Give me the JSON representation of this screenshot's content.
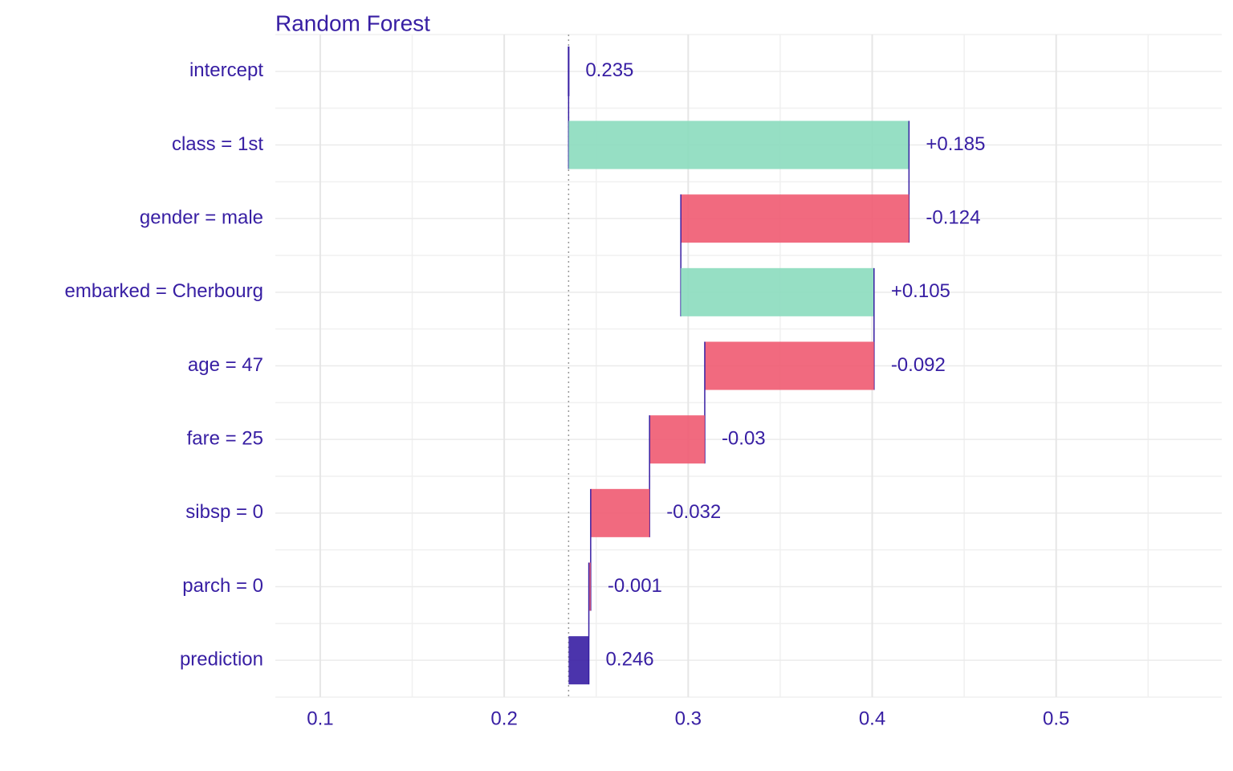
{
  "chart_data": {
    "type": "waterfall",
    "title": "Random Forest",
    "categories": [
      "intercept",
      "class = 1st",
      "gender = male",
      "embarked = Cherbourg",
      "age = 47",
      "fare = 25",
      "sibsp = 0",
      "parch = 0",
      "prediction"
    ],
    "values": [
      0.235,
      0.185,
      -0.124,
      0.105,
      -0.092,
      -0.03,
      -0.032,
      -0.001,
      0.246
    ],
    "value_labels": [
      "0.235",
      "+0.185",
      "-0.124",
      "+0.105",
      "-0.092",
      "-0.03",
      "-0.032",
      "-0.001",
      "0.246"
    ],
    "colors": {
      "positive": "#8bdcbe",
      "negative": "#f05a71",
      "total": "#371ea3"
    },
    "xlim": [
      0.0756,
      0.59
    ],
    "xticks": [
      0.1,
      0.2,
      0.3,
      0.4,
      0.5
    ],
    "xminor": [
      0.15,
      0.25,
      0.35,
      0.45,
      0.55
    ],
    "grid": true
  }
}
